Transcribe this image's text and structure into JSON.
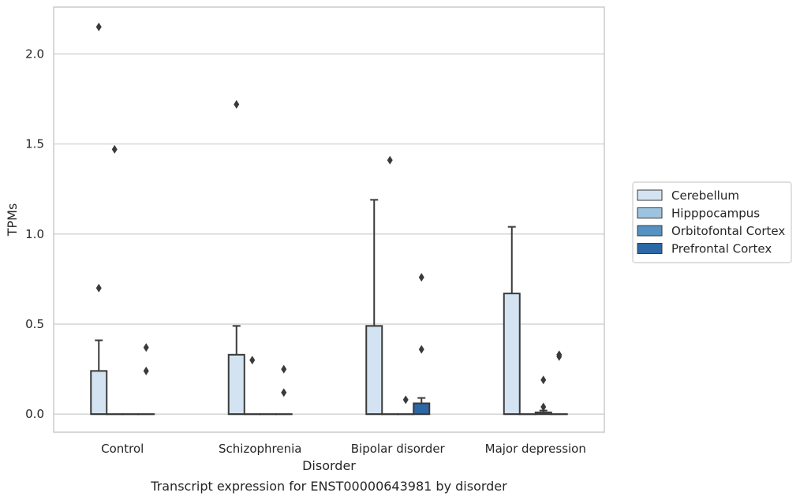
{
  "chart_data": {
    "type": "box",
    "caption": "Transcript expression for ENST00000643981 by disorder",
    "xlabel": "Disorder",
    "ylabel": "TPMs",
    "ylim": [
      -0.1,
      2.26
    ],
    "yticks": [
      0.0,
      0.5,
      1.0,
      1.5,
      2.0
    ],
    "ytick_labels": [
      "0.0",
      "0.5",
      "1.0",
      "1.5",
      "2.0"
    ],
    "grid": "horizontal",
    "legend_position": "right",
    "categories": [
      "Control",
      "Schizophrenia",
      "Bipolar disorder",
      "Major depression"
    ],
    "series": [
      {
        "name": "Cerebellum",
        "color": "#d4e3f1",
        "boxes": [
          {
            "q1": 0.0,
            "median": 0.0,
            "q3": 0.24,
            "whisker_low": 0.0,
            "whisker_high": 0.41,
            "outliers": [
              0.7,
              2.15
            ]
          },
          {
            "q1": 0.0,
            "median": 0.0,
            "q3": 0.33,
            "whisker_low": 0.0,
            "whisker_high": 0.49,
            "outliers": [
              1.72
            ]
          },
          {
            "q1": 0.0,
            "median": 0.0,
            "q3": 0.49,
            "whisker_low": 0.0,
            "whisker_high": 1.19,
            "outliers": []
          },
          {
            "q1": 0.0,
            "median": 0.0,
            "q3": 0.67,
            "whisker_low": 0.0,
            "whisker_high": 1.04,
            "outliers": []
          }
        ]
      },
      {
        "name": "Hipppocampus",
        "color": "#9cc3df",
        "boxes": [
          {
            "q1": 0.0,
            "median": 0.0,
            "q3": 0.0,
            "whisker_low": 0.0,
            "whisker_high": 0.0,
            "outliers": [
              1.47
            ]
          },
          {
            "q1": 0.0,
            "median": 0.0,
            "q3": 0.0,
            "whisker_low": 0.0,
            "whisker_high": 0.0,
            "outliers": [
              0.3
            ]
          },
          {
            "q1": 0.0,
            "median": 0.0,
            "q3": 0.0,
            "whisker_low": 0.0,
            "whisker_high": 0.0,
            "outliers": [
              1.41
            ]
          },
          {
            "q1": 0.0,
            "median": 0.0,
            "q3": 0.0,
            "whisker_low": 0.0,
            "whisker_high": 0.0,
            "outliers": []
          }
        ]
      },
      {
        "name": "Orbitofontal Cortex",
        "color": "#5592c2",
        "boxes": [
          {
            "q1": 0.0,
            "median": 0.0,
            "q3": 0.0,
            "whisker_low": 0.0,
            "whisker_high": 0.0,
            "outliers": []
          },
          {
            "q1": 0.0,
            "median": 0.0,
            "q3": 0.0,
            "whisker_low": 0.0,
            "whisker_high": 0.0,
            "outliers": []
          },
          {
            "q1": 0.0,
            "median": 0.0,
            "q3": 0.0,
            "whisker_low": 0.0,
            "whisker_high": 0.0,
            "outliers": [
              0.08
            ]
          },
          {
            "q1": 0.0,
            "median": 0.0,
            "q3": 0.01,
            "whisker_low": 0.0,
            "whisker_high": 0.02,
            "outliers": [
              0.04,
              0.19
            ]
          }
        ]
      },
      {
        "name": "Prefrontal Cortex",
        "color": "#2c68a6",
        "boxes": [
          {
            "q1": 0.0,
            "median": 0.0,
            "q3": 0.0,
            "whisker_low": 0.0,
            "whisker_high": 0.0,
            "outliers": [
              0.24,
              0.37
            ]
          },
          {
            "q1": 0.0,
            "median": 0.0,
            "q3": 0.0,
            "whisker_low": 0.0,
            "whisker_high": 0.0,
            "outliers": [
              0.12,
              0.25
            ]
          },
          {
            "q1": 0.0,
            "median": 0.0,
            "q3": 0.06,
            "whisker_low": 0.0,
            "whisker_high": 0.09,
            "outliers": [
              0.36,
              0.76
            ]
          },
          {
            "q1": 0.0,
            "median": 0.0,
            "q3": 0.0,
            "whisker_low": 0.0,
            "whisker_high": 0.0,
            "outliers": [
              0.32,
              0.33
            ]
          }
        ]
      }
    ]
  }
}
